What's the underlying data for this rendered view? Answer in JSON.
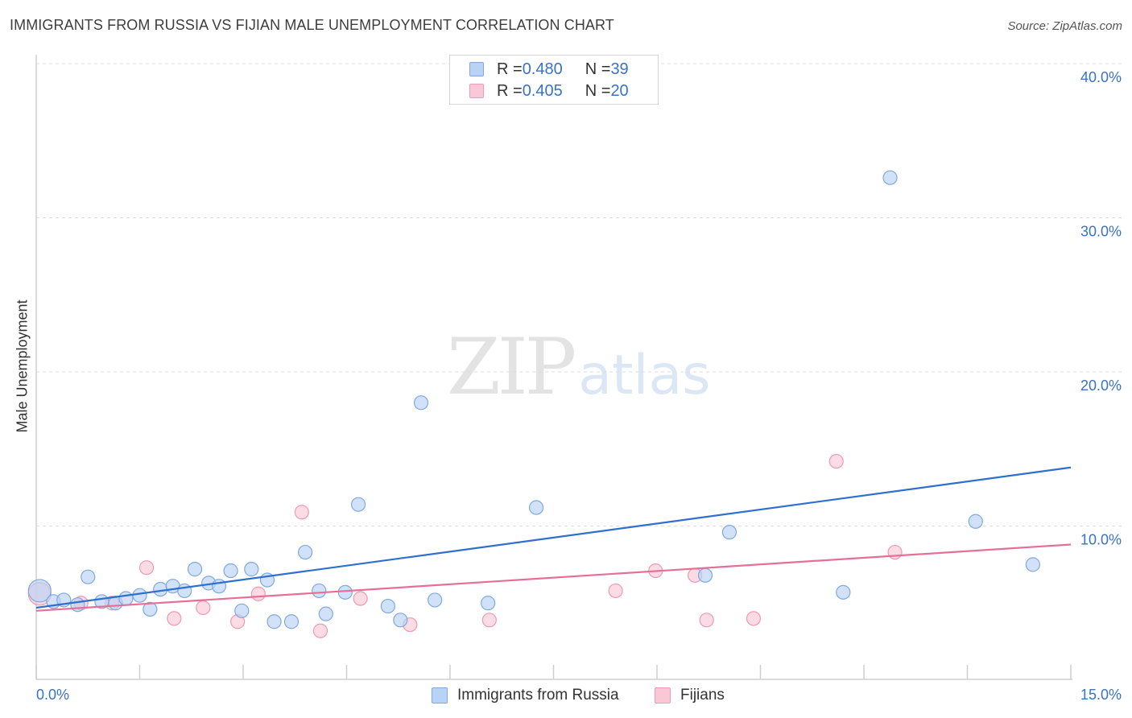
{
  "title": "IMMIGRANTS FROM RUSSIA VS FIJIAN MALE UNEMPLOYMENT CORRELATION CHART",
  "source": "Source: ZipAtlas.com",
  "watermark": {
    "zip": "ZIP",
    "atlas": "atlas"
  },
  "legend": {
    "rows": [
      {
        "r_label": "R = ",
        "r_value": "0.480",
        "n_label": "N = ",
        "n_value": "39"
      },
      {
        "r_label": "R = ",
        "r_value": "0.405",
        "n_label": "N = ",
        "n_value": "20"
      }
    ]
  },
  "chart_data": {
    "type": "scatter",
    "title": "IMMIGRANTS FROM RUSSIA VS FIJIAN MALE UNEMPLOYMENT CORRELATION CHART",
    "xlabel": "",
    "ylabel": "Male Unemployment",
    "xlim": [
      0,
      15
    ],
    "ylim": [
      0,
      41
    ],
    "x_tick_labels": [
      "0.0%",
      "15.0%"
    ],
    "y_ticks": [
      10,
      20,
      30,
      40
    ],
    "y_tick_labels": [
      "10.0%",
      "20.0%",
      "30.0%",
      "40.0%"
    ],
    "grid": true,
    "legend_position": "top-center",
    "colors": {
      "russia_fill": "#b9d3f5",
      "russia_stroke": "#7fa9e0",
      "russia_line": "#2f6fce",
      "fijian_fill": "#f9c7d6",
      "fijian_stroke": "#ee9ab3",
      "fijian_line": "#e56f97",
      "tick_label": "#3a72c4"
    },
    "series": [
      {
        "name": "Immigrants from Russia",
        "r": 0.48,
        "n": 39,
        "trend": {
          "x": [
            0,
            15
          ],
          "y": [
            4.7,
            13.8
          ]
        },
        "points": [
          {
            "x": 0.05,
            "y": 5.8,
            "big": true
          },
          {
            "x": 0.25,
            "y": 5.1
          },
          {
            "x": 0.4,
            "y": 5.2
          },
          {
            "x": 0.6,
            "y": 4.9
          },
          {
            "x": 0.75,
            "y": 6.7
          },
          {
            "x": 0.95,
            "y": 5.1
          },
          {
            "x": 1.15,
            "y": 5.0
          },
          {
            "x": 1.3,
            "y": 5.3
          },
          {
            "x": 1.5,
            "y": 5.5
          },
          {
            "x": 1.65,
            "y": 4.6
          },
          {
            "x": 1.8,
            "y": 5.9
          },
          {
            "x": 1.98,
            "y": 6.1
          },
          {
            "x": 2.15,
            "y": 5.8
          },
          {
            "x": 2.3,
            "y": 7.2
          },
          {
            "x": 2.5,
            "y": 6.3
          },
          {
            "x": 2.65,
            "y": 6.1
          },
          {
            "x": 2.82,
            "y": 7.1
          },
          {
            "x": 2.98,
            "y": 4.5
          },
          {
            "x": 3.12,
            "y": 7.2
          },
          {
            "x": 3.35,
            "y": 6.5
          },
          {
            "x": 3.45,
            "y": 3.8
          },
          {
            "x": 3.7,
            "y": 3.8
          },
          {
            "x": 3.9,
            "y": 8.3
          },
          {
            "x": 4.1,
            "y": 5.8
          },
          {
            "x": 4.2,
            "y": 4.3
          },
          {
            "x": 4.48,
            "y": 5.7
          },
          {
            "x": 4.67,
            "y": 11.4
          },
          {
            "x": 5.1,
            "y": 4.8
          },
          {
            "x": 5.28,
            "y": 3.9
          },
          {
            "x": 5.58,
            "y": 18.0
          },
          {
            "x": 5.78,
            "y": 5.2
          },
          {
            "x": 6.55,
            "y": 5.0
          },
          {
            "x": 7.25,
            "y": 11.2
          },
          {
            "x": 9.7,
            "y": 6.8
          },
          {
            "x": 10.05,
            "y": 9.6
          },
          {
            "x": 11.7,
            "y": 5.7
          },
          {
            "x": 12.38,
            "y": 32.6
          },
          {
            "x": 13.62,
            "y": 10.3
          },
          {
            "x": 14.45,
            "y": 7.5
          }
        ]
      },
      {
        "name": "Fijians",
        "r": 0.405,
        "n": 20,
        "trend": {
          "x": [
            0,
            15
          ],
          "y": [
            4.5,
            8.8
          ]
        },
        "points": [
          {
            "x": 0.05,
            "y": 5.6,
            "big": true
          },
          {
            "x": 0.65,
            "y": 5.0
          },
          {
            "x": 1.1,
            "y": 5.0
          },
          {
            "x": 1.6,
            "y": 7.3
          },
          {
            "x": 2.0,
            "y": 4.0
          },
          {
            "x": 2.42,
            "y": 4.7
          },
          {
            "x": 2.92,
            "y": 3.8
          },
          {
            "x": 3.22,
            "y": 5.6
          },
          {
            "x": 3.85,
            "y": 10.9
          },
          {
            "x": 4.12,
            "y": 3.2
          },
          {
            "x": 4.7,
            "y": 5.3
          },
          {
            "x": 5.42,
            "y": 3.6
          },
          {
            "x": 6.57,
            "y": 3.9
          },
          {
            "x": 8.4,
            "y": 5.8
          },
          {
            "x": 8.98,
            "y": 7.1
          },
          {
            "x": 9.55,
            "y": 6.8
          },
          {
            "x": 9.72,
            "y": 3.9
          },
          {
            "x": 11.6,
            "y": 14.2
          },
          {
            "x": 10.4,
            "y": 4.0
          },
          {
            "x": 12.45,
            "y": 8.3
          }
        ]
      }
    ]
  }
}
